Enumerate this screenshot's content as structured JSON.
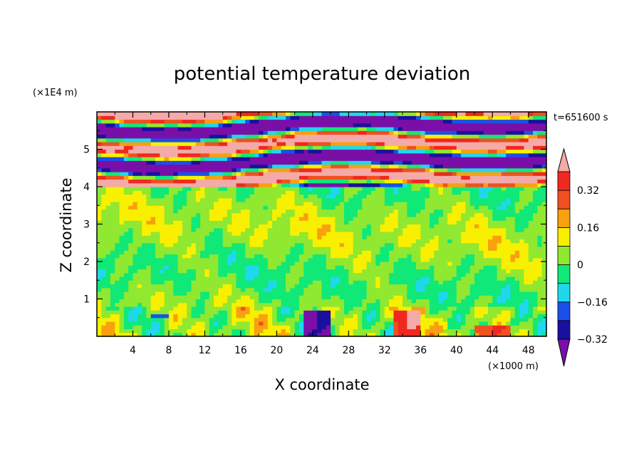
{
  "chart_data": {
    "type": "heatmap",
    "title": "potential temperature deviation",
    "xlabel": "X coordinate",
    "ylabel": "Z coordinate",
    "x_unit": "(×1000 m)",
    "y_unit": "(×1E4 m)",
    "time_label": "t=651600 s",
    "xlim": [
      0,
      50
    ],
    "ylim": [
      0,
      6
    ],
    "x_ticks": [
      "4",
      "8",
      "12",
      "16",
      "20",
      "24",
      "28",
      "32",
      "36",
      "40",
      "44",
      "48"
    ],
    "x_tick_values": [
      4,
      8,
      12,
      16,
      20,
      24,
      28,
      32,
      36,
      40,
      44,
      48
    ],
    "y_ticks": [
      "1",
      "2",
      "3",
      "4",
      "5"
    ],
    "y_tick_values": [
      1,
      2,
      3,
      4,
      5
    ],
    "colorbar": {
      "labels": [
        "0.32",
        "0.16",
        "0",
        "−0.16",
        "−0.32"
      ],
      "label_values": [
        0.32,
        0.16,
        0,
        -0.16,
        -0.32
      ],
      "boundaries": [
        -0.4,
        -0.32,
        -0.24,
        -0.16,
        -0.08,
        0,
        0.08,
        0.16,
        0.24,
        0.32,
        0.4
      ],
      "colors": [
        "#7a0fa8",
        "#1a10a0",
        "#1a50e8",
        "#20d8ec",
        "#10e878",
        "#90e830",
        "#f8f000",
        "#f8a010",
        "#f05020",
        "#f02820",
        "#f4aaa8"
      ]
    },
    "grid": false
  }
}
